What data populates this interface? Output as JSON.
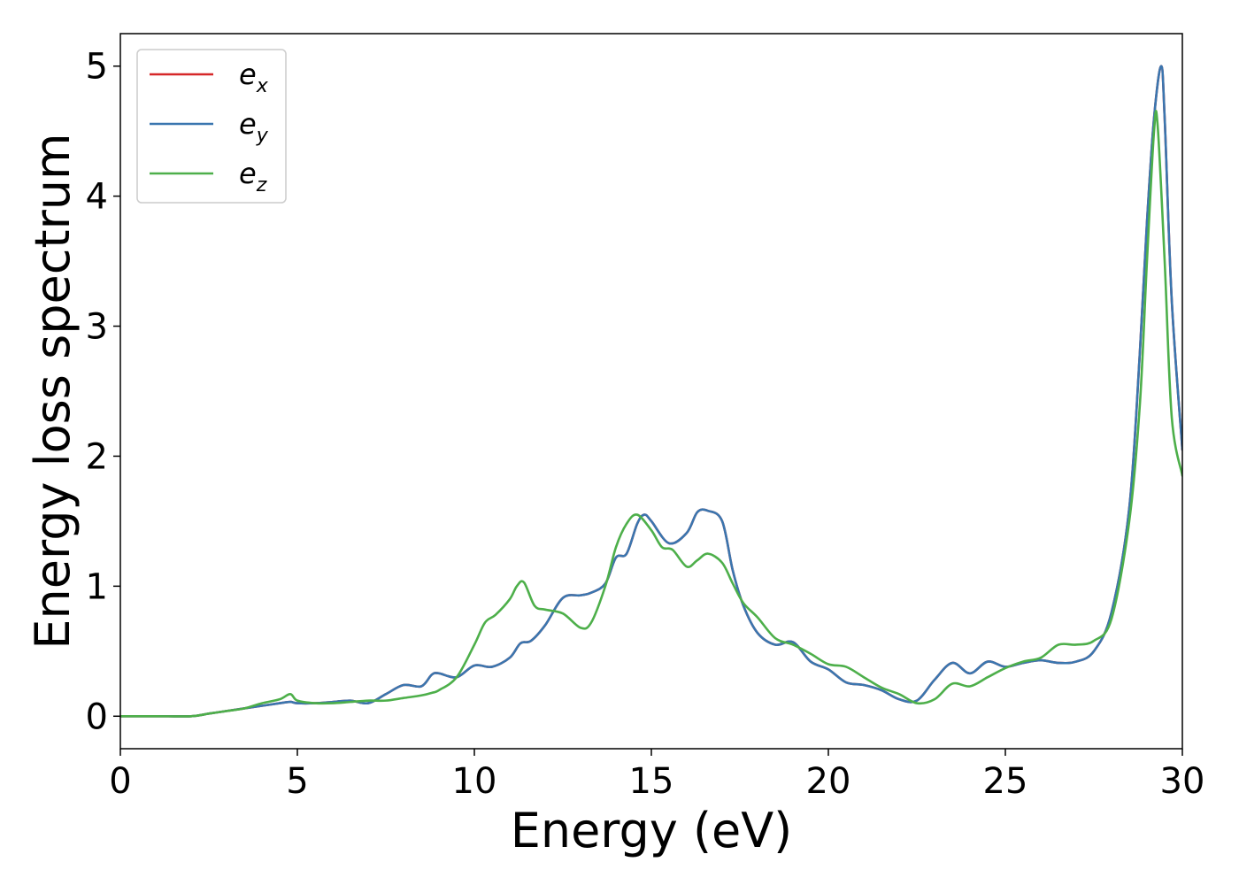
{
  "chart_data": {
    "type": "line",
    "title": "",
    "xlabel": "Energy (eV)",
    "ylabel": "Energy loss spectrum",
    "xlim": [
      0,
      30
    ],
    "ylim": [
      -0.25,
      5.25
    ],
    "xticks": [
      0,
      5,
      10,
      15,
      20,
      25,
      30
    ],
    "yticks": [
      0,
      1,
      2,
      3,
      4,
      5
    ],
    "grid": false,
    "legend_position": "top-left",
    "series": [
      {
        "name": "x",
        "legend_base": "e",
        "legend_sub": "x",
        "color": "#d62728",
        "x": [
          0,
          1,
          2,
          2.5,
          3,
          3.5,
          4,
          4.5,
          4.8,
          5,
          5.5,
          6,
          6.5,
          7,
          7.5,
          8,
          8.5,
          8.8,
          9,
          9.5,
          10,
          10.5,
          11,
          11.3,
          11.6,
          12,
          12.5,
          13,
          13.3,
          13.7,
          14,
          14.3,
          14.6,
          14.8,
          15,
          15.5,
          16,
          16.3,
          16.6,
          17,
          17.3,
          17.6,
          18,
          18.5,
          19,
          19.5,
          20,
          20.5,
          21,
          21.5,
          22,
          22.5,
          23,
          23.5,
          24,
          24.5,
          25,
          25.5,
          26,
          26.5,
          27,
          27.5,
          28,
          28.5,
          28.8,
          29,
          29.2,
          29.4,
          29.5,
          29.7,
          30
        ],
        "y": [
          0,
          0,
          0,
          0.02,
          0.04,
          0.06,
          0.08,
          0.1,
          0.11,
          0.1,
          0.1,
          0.11,
          0.12,
          0.1,
          0.17,
          0.24,
          0.23,
          0.32,
          0.33,
          0.3,
          0.39,
          0.38,
          0.45,
          0.56,
          0.58,
          0.7,
          0.91,
          0.93,
          0.95,
          1.02,
          1.22,
          1.25,
          1.48,
          1.55,
          1.5,
          1.33,
          1.41,
          1.57,
          1.58,
          1.5,
          1.12,
          0.85,
          0.64,
          0.55,
          0.57,
          0.42,
          0.36,
          0.26,
          0.24,
          0.2,
          0.13,
          0.12,
          0.28,
          0.41,
          0.33,
          0.42,
          0.38,
          0.41,
          0.43,
          0.41,
          0.42,
          0.5,
          0.8,
          1.6,
          2.8,
          3.8,
          4.6,
          5.0,
          4.6,
          3.2,
          2.05
        ]
      },
      {
        "name": "y",
        "legend_base": "e",
        "legend_sub": "y",
        "color": "#3a76af",
        "x": [
          0,
          1,
          2,
          2.5,
          3,
          3.5,
          4,
          4.5,
          4.8,
          5,
          5.5,
          6,
          6.5,
          7,
          7.5,
          8,
          8.5,
          8.8,
          9,
          9.5,
          10,
          10.5,
          11,
          11.3,
          11.6,
          12,
          12.5,
          13,
          13.3,
          13.7,
          14,
          14.3,
          14.6,
          14.8,
          15,
          15.5,
          16,
          16.3,
          16.6,
          17,
          17.3,
          17.6,
          18,
          18.5,
          19,
          19.5,
          20,
          20.5,
          21,
          21.5,
          22,
          22.5,
          23,
          23.5,
          24,
          24.5,
          25,
          25.5,
          26,
          26.5,
          27,
          27.5,
          28,
          28.5,
          28.8,
          29,
          29.2,
          29.4,
          29.5,
          29.7,
          30
        ],
        "y": [
          0,
          0,
          0,
          0.02,
          0.04,
          0.06,
          0.08,
          0.1,
          0.11,
          0.1,
          0.1,
          0.11,
          0.12,
          0.1,
          0.17,
          0.24,
          0.23,
          0.32,
          0.33,
          0.3,
          0.39,
          0.38,
          0.45,
          0.56,
          0.58,
          0.7,
          0.91,
          0.93,
          0.95,
          1.02,
          1.22,
          1.25,
          1.48,
          1.55,
          1.5,
          1.33,
          1.41,
          1.57,
          1.58,
          1.5,
          1.12,
          0.85,
          0.64,
          0.55,
          0.57,
          0.42,
          0.36,
          0.26,
          0.24,
          0.2,
          0.13,
          0.12,
          0.28,
          0.41,
          0.33,
          0.42,
          0.38,
          0.41,
          0.43,
          0.41,
          0.42,
          0.5,
          0.8,
          1.6,
          2.8,
          3.8,
          4.6,
          5.0,
          4.6,
          3.2,
          2.05
        ]
      },
      {
        "name": "z",
        "legend_base": "e",
        "legend_sub": "z",
        "color": "#4daf4a",
        "x": [
          0,
          1,
          2,
          2.5,
          3,
          3.5,
          4,
          4.5,
          4.8,
          5,
          5.5,
          6,
          6.5,
          7,
          7.5,
          8,
          8.5,
          8.8,
          9,
          9.5,
          10,
          10.3,
          10.6,
          11,
          11.2,
          11.4,
          11.7,
          12,
          12.5,
          13,
          13.3,
          13.7,
          14,
          14.3,
          14.6,
          15,
          15.3,
          15.6,
          16,
          16.3,
          16.6,
          17,
          17.3,
          17.6,
          18,
          18.5,
          19,
          19.5,
          20,
          20.5,
          21,
          21.5,
          22,
          22.5,
          23,
          23.5,
          24,
          24.5,
          25,
          25.5,
          26,
          26.5,
          27,
          27.5,
          28,
          28.5,
          28.8,
          29,
          29.2,
          29.3,
          29.5,
          29.7,
          30
        ],
        "y": [
          0,
          0,
          0,
          0.02,
          0.04,
          0.06,
          0.1,
          0.13,
          0.17,
          0.12,
          0.1,
          0.1,
          0.11,
          0.12,
          0.12,
          0.14,
          0.16,
          0.18,
          0.2,
          0.3,
          0.55,
          0.72,
          0.78,
          0.9,
          1.0,
          1.03,
          0.85,
          0.82,
          0.79,
          0.68,
          0.72,
          1.0,
          1.3,
          1.48,
          1.55,
          1.43,
          1.3,
          1.28,
          1.15,
          1.2,
          1.25,
          1.18,
          1.02,
          0.87,
          0.76,
          0.6,
          0.55,
          0.48,
          0.4,
          0.38,
          0.3,
          0.22,
          0.17,
          0.1,
          0.13,
          0.25,
          0.23,
          0.3,
          0.37,
          0.42,
          0.45,
          0.55,
          0.55,
          0.58,
          0.75,
          1.5,
          2.4,
          3.5,
          4.5,
          4.55,
          3.5,
          2.3,
          1.85
        ]
      }
    ]
  }
}
